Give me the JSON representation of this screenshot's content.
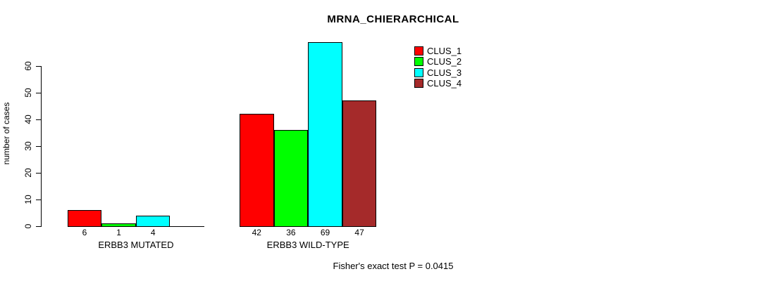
{
  "chart_data": {
    "type": "bar",
    "title": "MRNA_CHIERARCHICAL",
    "ylabel": "number of cases",
    "xlabel": "",
    "ylim": [
      0,
      60
    ],
    "yticks": [
      0,
      10,
      20,
      30,
      40,
      50,
      60
    ],
    "grid": false,
    "categories": [
      "ERBB3 MUTATED",
      "ERBB3 WILD-TYPE"
    ],
    "series": [
      {
        "name": "CLUS_1",
        "color": "#ff0000",
        "values": [
          6,
          42
        ]
      },
      {
        "name": "CLUS_2",
        "color": "#00ff00",
        "values": [
          1,
          36
        ]
      },
      {
        "name": "CLUS_3",
        "color": "#00ffff",
        "values": [
          4,
          69
        ]
      },
      {
        "name": "CLUS_4",
        "color": "#a52a2a",
        "values": [
          0,
          47
        ]
      }
    ],
    "bar_value_labels": [
      [
        "6",
        "1",
        "4",
        ""
      ],
      [
        "42",
        "36",
        "69",
        "47"
      ]
    ],
    "legend": {
      "position": "top-right",
      "entries": [
        "CLUS_1",
        "CLUS_2",
        "CLUS_3",
        "CLUS_4"
      ]
    },
    "annotation": "Fisher's exact test P = 0.0415"
  }
}
